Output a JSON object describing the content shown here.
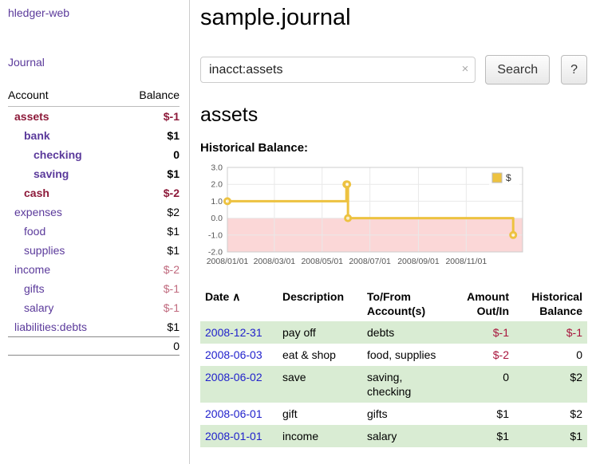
{
  "colors": {
    "purple": "#5b3a9b",
    "maroon": "#8d1a3a",
    "rose": "#c06a7e",
    "negative_red": "#a8143c",
    "date_blue": "#2121cc",
    "row_green": "#d9ecd3",
    "chart_line_gold": "#edc240",
    "chart_negative_pink": "#fbd7d7",
    "grid_gray": "#e9e9e9",
    "border_gray": "#cccccc"
  },
  "sidebar": {
    "app_title": "hledger-web",
    "journal_label": "Journal",
    "table": {
      "account_header": "Account",
      "balance_header": "Balance",
      "rows": [
        {
          "name": "assets",
          "balance": "$-1",
          "indent": 0,
          "bold": true,
          "name_color": "maroon",
          "balance_color": "maroon"
        },
        {
          "name": "bank",
          "balance": "$1",
          "indent": 1,
          "bold": true,
          "name_color": "purple"
        },
        {
          "name": "checking",
          "balance": "0",
          "indent": 2,
          "bold": true,
          "name_color": "purple"
        },
        {
          "name": "saving",
          "balance": "$1",
          "indent": 2,
          "bold": true,
          "name_color": "purple"
        },
        {
          "name": "cash",
          "balance": "$-2",
          "indent": 1,
          "bold": true,
          "name_color": "maroon",
          "balance_color": "maroon"
        },
        {
          "name": "expenses",
          "balance": "$2",
          "indent": 0,
          "bold": false,
          "name_color": "purple"
        },
        {
          "name": "food",
          "balance": "$1",
          "indent": 1,
          "bold": false,
          "name_color": "purple"
        },
        {
          "name": "supplies",
          "balance": "$1",
          "indent": 1,
          "bold": false,
          "name_color": "purple"
        },
        {
          "name": "income",
          "balance": "$-2",
          "indent": 0,
          "bold": false,
          "name_color": "purple",
          "balance_color": "rose"
        },
        {
          "name": "gifts",
          "balance": "$-1",
          "indent": 1,
          "bold": false,
          "name_color": "purple",
          "balance_color": "rose"
        },
        {
          "name": "salary",
          "balance": "$-1",
          "indent": 1,
          "bold": false,
          "name_color": "purple",
          "balance_color": "rose"
        },
        {
          "name": "liabilities:debts",
          "balance": "$1",
          "indent": 0,
          "bold": false,
          "name_color": "purple"
        }
      ],
      "total": "0"
    }
  },
  "main": {
    "title": "sample.journal",
    "search": {
      "value": "inacct:assets",
      "clear_icon": "×",
      "button_label": "Search",
      "help_label": "?"
    },
    "account_heading": "assets",
    "chart_label": "Historical Balance:"
  },
  "chart_data": {
    "type": "line",
    "title": "Historical Balance",
    "step": true,
    "x_type": "date",
    "xlim": [
      "2008-01-01",
      "2009-01-12"
    ],
    "ylim": [
      -2.0,
      3.0
    ],
    "yticks": [
      3.0,
      2.0,
      1.0,
      0.0,
      -1.0,
      -2.0
    ],
    "xtick_labels": [
      "2008/01/01",
      "2008/03/01",
      "2008/05/01",
      "2008/07/01",
      "2008/09/01",
      "2008/11/01"
    ],
    "series": [
      {
        "name": "$",
        "color": "#edc240",
        "points": [
          [
            "2008-01-01",
            1
          ],
          [
            "2008-06-01",
            2
          ],
          [
            "2008-06-02",
            2
          ],
          [
            "2008-06-03",
            0
          ],
          [
            "2008-12-31",
            -1
          ]
        ]
      }
    ],
    "negative_region_color": "#fbd7d7",
    "legend_position": "top-right",
    "grid": true
  },
  "register": {
    "sort_icon": "∧",
    "headers": {
      "date": "Date",
      "description": "Description",
      "tofrom_line1": "To/From",
      "tofrom_line2": "Account(s)",
      "amount_line1": "Amount",
      "amount_line2": "Out/In",
      "balance_line1": "Historical",
      "balance_line2": "Balance"
    },
    "rows": [
      {
        "date": "2008-12-31",
        "description": "pay off",
        "accounts": "debts",
        "amount": "$-1",
        "amount_negative": true,
        "balance": "$-1",
        "balance_negative": true,
        "shaded": true
      },
      {
        "date": "2008-06-03",
        "description": "eat & shop",
        "accounts": "food, supplies",
        "amount": "$-2",
        "amount_negative": true,
        "balance": "0",
        "balance_negative": false,
        "shaded": false
      },
      {
        "date": "2008-06-02",
        "description": "save",
        "accounts": "saving, checking",
        "amount": "0",
        "amount_negative": false,
        "balance": "$2",
        "balance_negative": false,
        "shaded": true
      },
      {
        "date": "2008-06-01",
        "description": "gift",
        "accounts": "gifts",
        "amount": "$1",
        "amount_negative": false,
        "balance": "$2",
        "balance_negative": false,
        "shaded": false
      },
      {
        "date": "2008-01-01",
        "description": "income",
        "accounts": "salary",
        "amount": "$1",
        "amount_negative": false,
        "balance": "$1",
        "balance_negative": false,
        "shaded": true
      }
    ]
  }
}
